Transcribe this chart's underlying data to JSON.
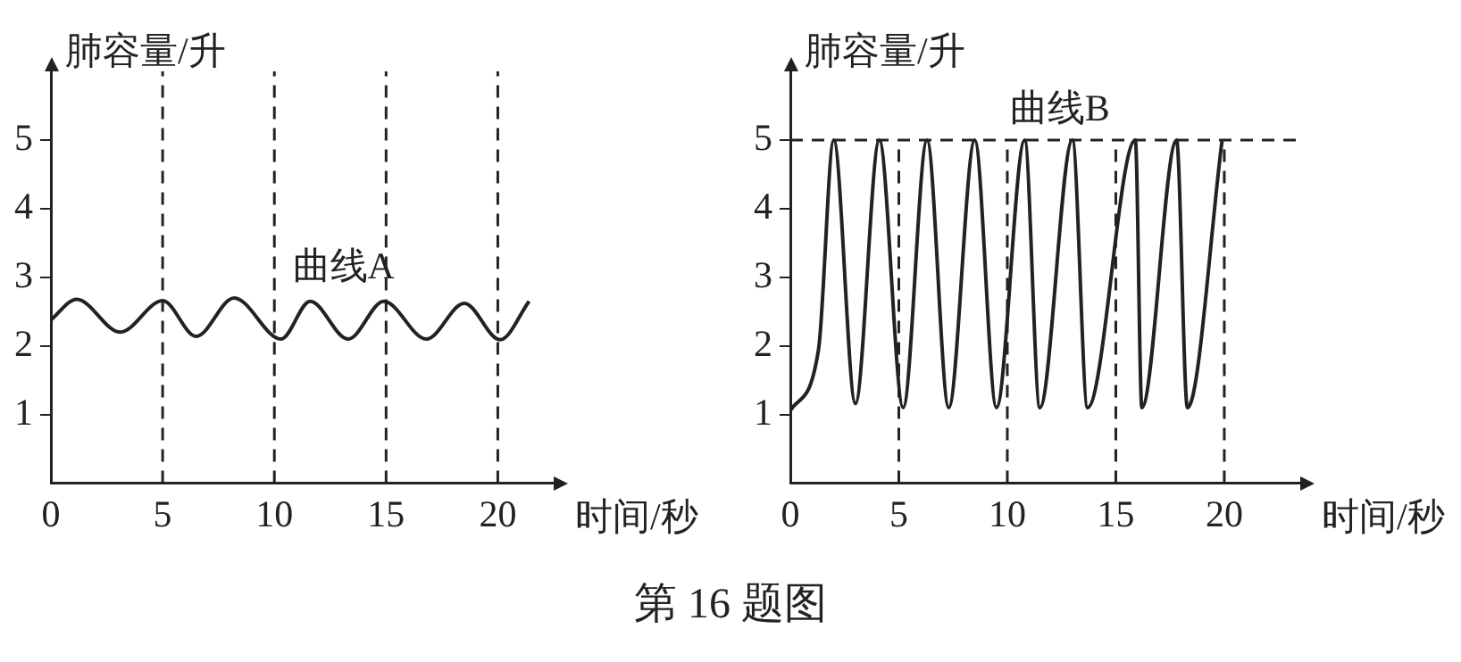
{
  "chart_data": [
    {
      "type": "line",
      "xlabel": "时间/秒",
      "ylabel": "肺容量/升",
      "xlim": [
        0,
        22.5
      ],
      "ylim": [
        0,
        6
      ],
      "xticks": [
        0,
        5,
        10,
        15,
        20
      ],
      "yticks": [
        1,
        2,
        3,
        4,
        5
      ],
      "grid": false,
      "legend": false,
      "marker": "none",
      "line_style": "solid",
      "series": [
        {
          "name": "曲线A",
          "color": "#222222",
          "x": [
            0,
            1.15,
            3.1,
            5,
            6.5,
            8.2,
            10.3,
            11.6,
            13.3,
            14.9,
            16.8,
            18.5,
            20.1,
            21.4
          ],
          "values": [
            2.38,
            2.68,
            2.2,
            2.66,
            2.14,
            2.7,
            2.1,
            2.65,
            2.1,
            2.65,
            2.1,
            2.62,
            2.09,
            2.65
          ]
        }
      ],
      "ref_lines": [
        {
          "axis": "x",
          "value": 5,
          "line_style": "dashed"
        },
        {
          "axis": "x",
          "value": 10,
          "line_style": "dashed"
        },
        {
          "axis": "x",
          "value": 15,
          "line_style": "dashed"
        },
        {
          "axis": "x",
          "value": 20,
          "line_style": "dashed"
        }
      ],
      "annotations": [
        "第 16 题图"
      ]
    },
    {
      "type": "line",
      "xlabel": "时间/秒",
      "ylabel": "肺容量/升",
      "xlim": [
        0,
        23.5
      ],
      "ylim": [
        0,
        6
      ],
      "xticks": [
        0,
        5,
        10,
        15,
        20
      ],
      "yticks": [
        1,
        2,
        3,
        4,
        5
      ],
      "grid": false,
      "legend": false,
      "marker": "none",
      "line_style": "solid",
      "series": [
        {
          "name": "曲线B",
          "color": "#222222",
          "x": [
            0,
            1.3,
            2.0,
            3.0,
            4.1,
            5.2,
            6.3,
            7.3,
            8.5,
            9.5,
            10.8,
            11.5,
            13.0,
            13.7,
            15.9,
            16.2,
            17.8,
            18.3,
            19.9
          ],
          "values": [
            1.06,
            1.95,
            5,
            1.16,
            5,
            1.1,
            5,
            1.1,
            5,
            1.1,
            5,
            1.1,
            5,
            1.1,
            5,
            1.1,
            5,
            1.1,
            5
          ]
        }
      ],
      "ref_lines": [
        {
          "axis": "x",
          "value": 5,
          "line_style": "dashed"
        },
        {
          "axis": "x",
          "value": 10,
          "line_style": "dashed"
        },
        {
          "axis": "x",
          "value": 15,
          "line_style": "dashed"
        },
        {
          "axis": "x",
          "value": 20,
          "line_style": "dashed"
        },
        {
          "axis": "y",
          "value": 5,
          "line_style": "dashed"
        }
      ]
    }
  ]
}
